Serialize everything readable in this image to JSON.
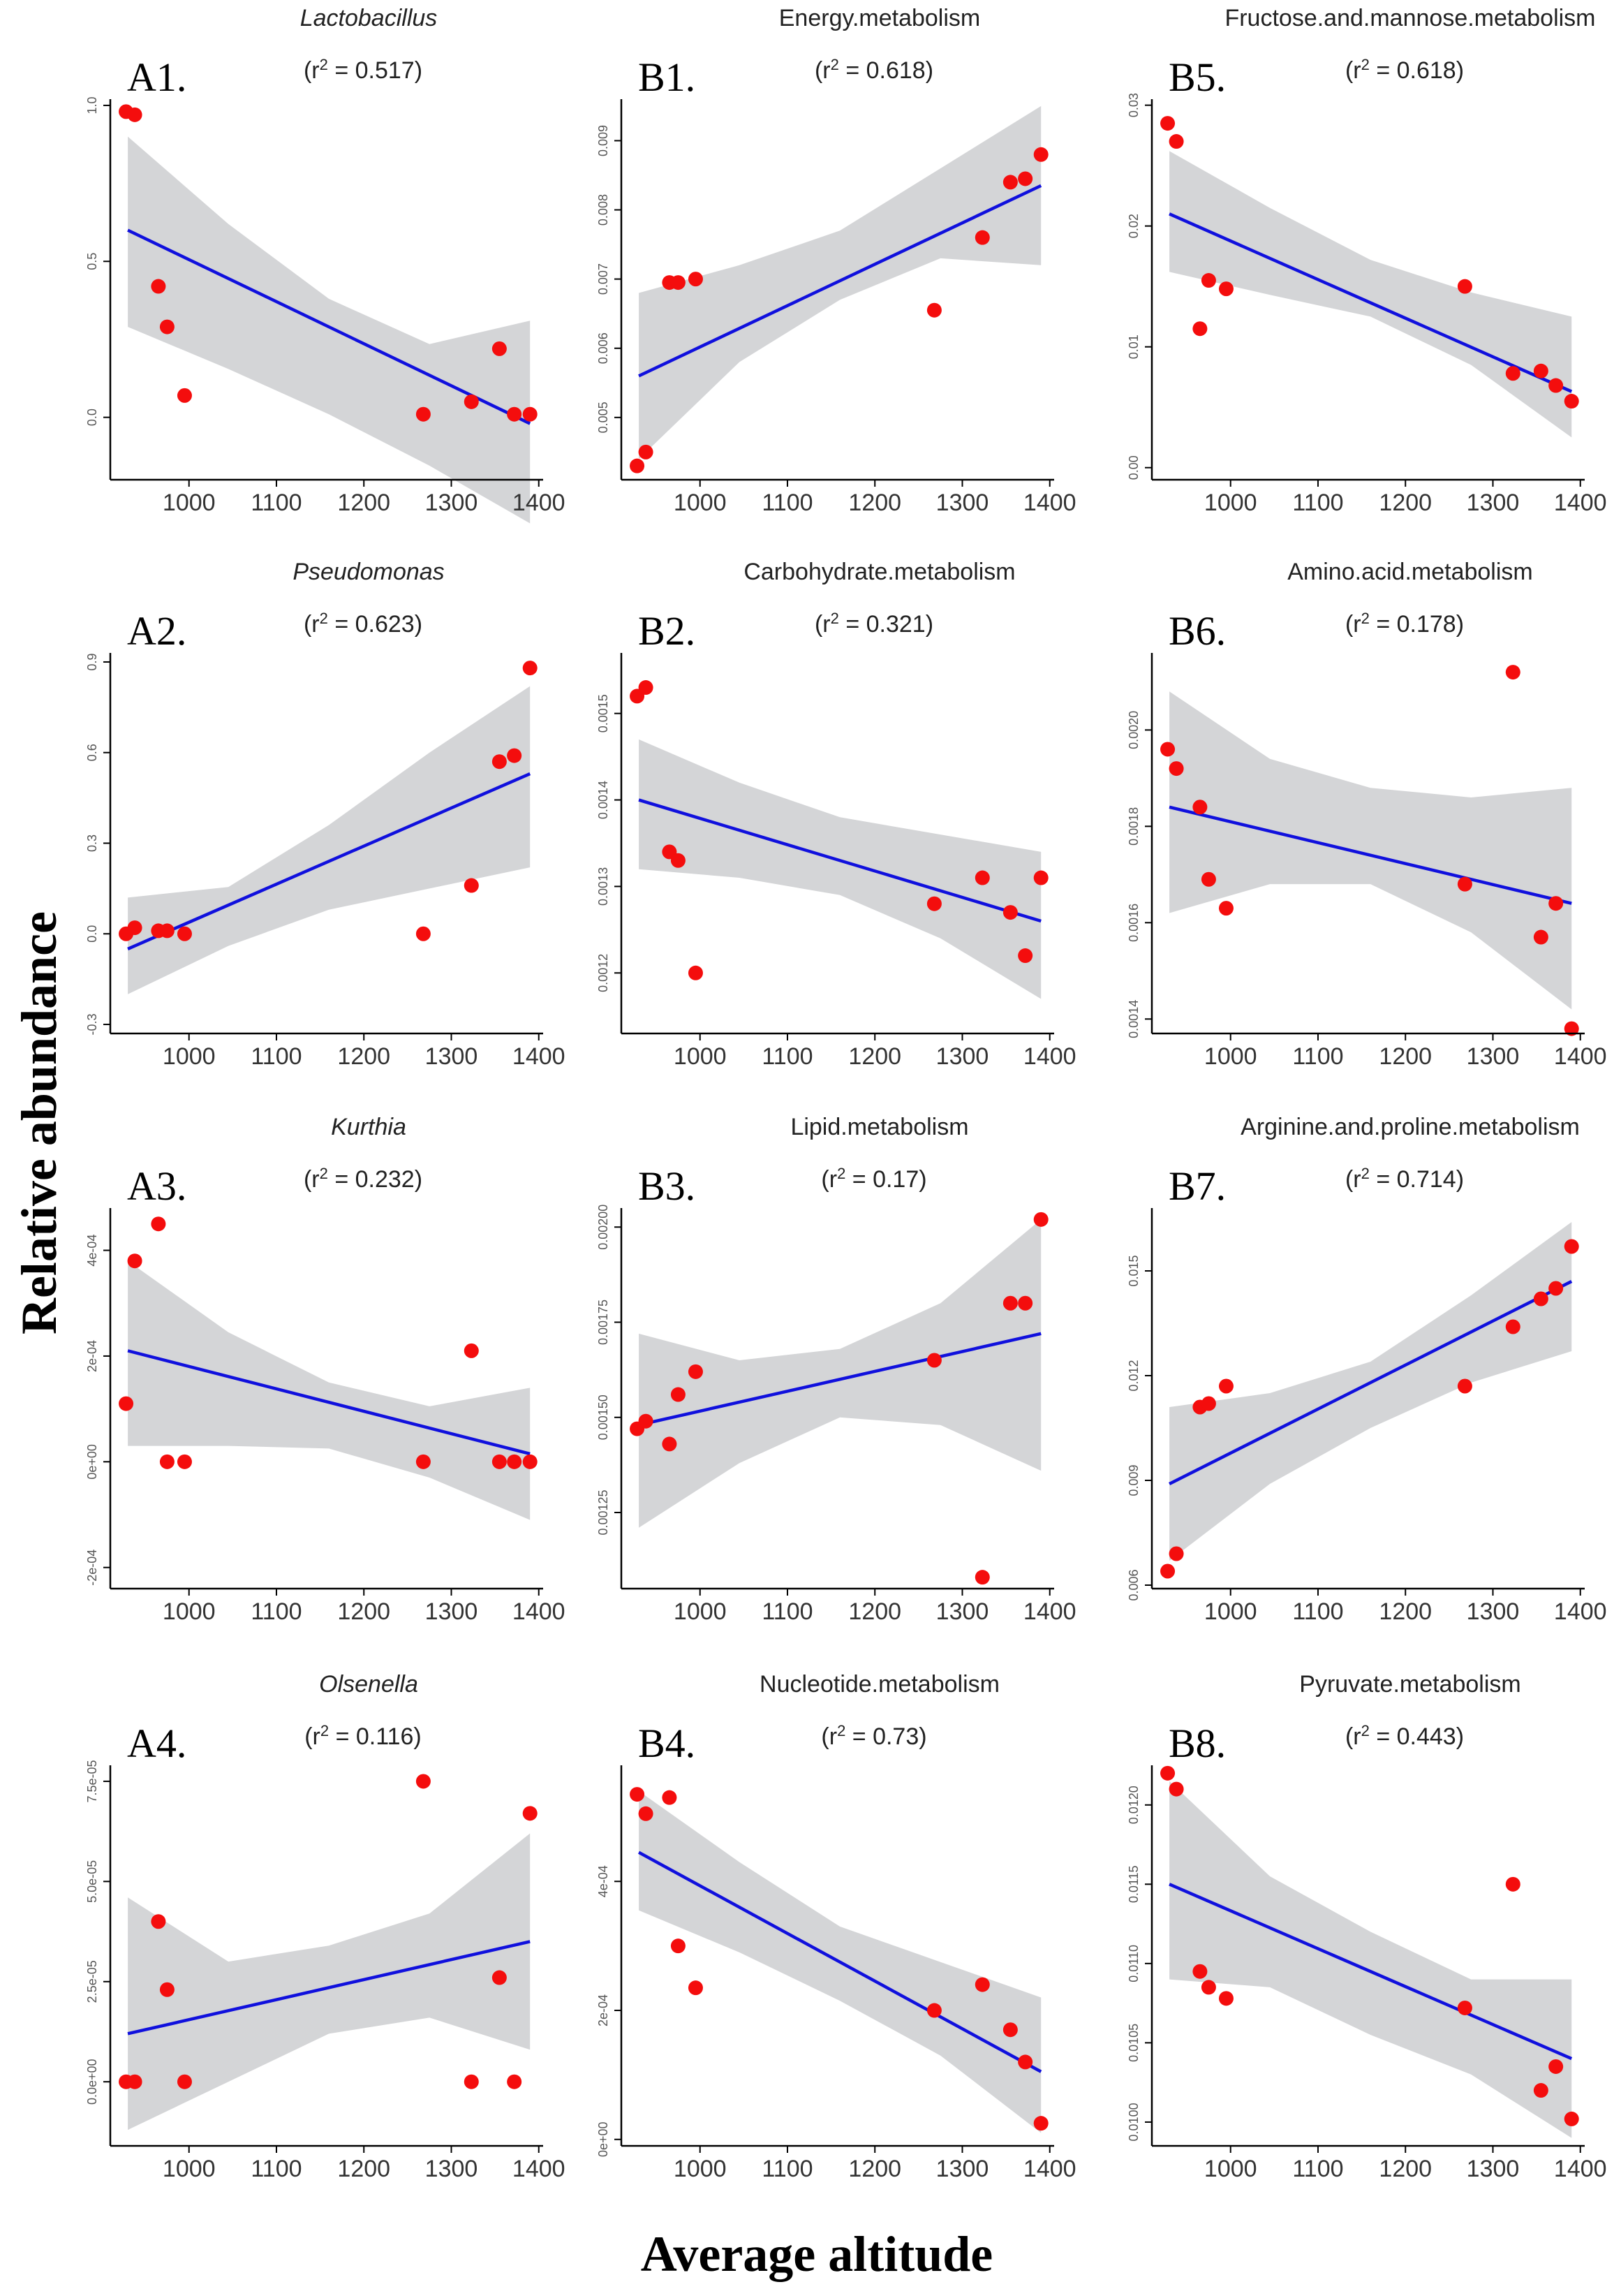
{
  "figure": {
    "ylabel": "Relative abundance",
    "xlabel": "Average altitude"
  },
  "chart_data": [
    {
      "id": "A1",
      "label": "A1.",
      "title": "Lactobacillus",
      "title_italic": true,
      "r2": "0.517",
      "type": "scatter",
      "xlim": [
        910,
        1405
      ],
      "xticks": [
        1000,
        1100,
        1200,
        1300,
        1400
      ],
      "xtick_labels": [
        "1000",
        "1100",
        "1200",
        "1300",
        "1400"
      ],
      "ylim": [
        -0.2,
        1.02
      ],
      "yticks": [
        0.0,
        0.5,
        1.0
      ],
      "ytick_labels": [
        "0.0",
        "0.5",
        "1.0"
      ],
      "x": [
        928,
        938,
        965,
        975,
        995,
        1268,
        1323,
        1355,
        1372,
        1390
      ],
      "y": [
        0.98,
        0.97,
        0.42,
        0.29,
        0.07,
        0.01,
        0.05,
        0.22,
        0.01,
        0.01
      ],
      "fit": {
        "x0": 930,
        "y0": 0.6,
        "x1": 1390,
        "y1": -0.02
      },
      "ci_lower": [
        0.29,
        0.155,
        0.01,
        -0.155,
        -0.34
      ],
      "ci_upper": [
        0.9,
        0.62,
        0.38,
        0.235,
        0.31
      ]
    },
    {
      "id": "A2",
      "label": "A2.",
      "title": "Pseudomonas",
      "title_italic": true,
      "r2": "0.623",
      "type": "scatter",
      "xlim": [
        910,
        1405
      ],
      "xticks": [
        1000,
        1100,
        1200,
        1300,
        1400
      ],
      "xtick_labels": [
        "1000",
        "1100",
        "1200",
        "1300",
        "1400"
      ],
      "ylim": [
        -0.33,
        0.93
      ],
      "yticks": [
        -0.3,
        0.0,
        0.3,
        0.6,
        0.9
      ],
      "ytick_labels": [
        "-0.3",
        "0.0",
        "0.3",
        "0.6",
        "0.9"
      ],
      "x": [
        928,
        938,
        965,
        975,
        995,
        1268,
        1323,
        1355,
        1372,
        1390
      ],
      "y": [
        0.0,
        0.02,
        0.01,
        0.01,
        0.0,
        0.0,
        0.16,
        0.57,
        0.59,
        0.88
      ],
      "fit": {
        "x0": 930,
        "y0": -0.05,
        "x1": 1390,
        "y1": 0.53
      },
      "ci_lower": [
        -0.2,
        -0.04,
        0.08,
        0.15,
        0.22
      ],
      "ci_upper": [
        0.12,
        0.155,
        0.36,
        0.6,
        0.82
      ]
    },
    {
      "id": "A3",
      "label": "A3.",
      "title": "Kurthia",
      "title_italic": true,
      "r2": "0.232",
      "type": "scatter",
      "xlim": [
        910,
        1405
      ],
      "xticks": [
        1000,
        1100,
        1200,
        1300,
        1400
      ],
      "xtick_labels": [
        "1000",
        "1100",
        "1200",
        "1300",
        "1400"
      ],
      "ylim": [
        -0.00024,
        0.00048
      ],
      "yticks": [
        -0.0002,
        0.0,
        0.0002,
        0.0004
      ],
      "ytick_labels": [
        "-2e-04",
        "0e+00",
        "2e-04",
        "4e-04"
      ],
      "x": [
        928,
        938,
        965,
        975,
        995,
        1268,
        1323,
        1355,
        1372,
        1390
      ],
      "y": [
        0.00011,
        0.00038,
        0.00045,
        0.0,
        0.0,
        0.0,
        0.00021,
        0.0,
        0.0,
        0.0
      ],
      "fit": {
        "x0": 930,
        "y0": 0.00021,
        "x1": 1390,
        "y1": 1.5e-05
      },
      "ci_lower": [
        3e-05,
        3e-05,
        2.5e-05,
        -3e-05,
        -0.00011
      ],
      "ci_upper": [
        0.00038,
        0.000245,
        0.00015,
        0.000105,
        0.00014
      ]
    },
    {
      "id": "A4",
      "label": "A4.",
      "title": "Olsenella",
      "title_italic": true,
      "r2": "0.116",
      "type": "scatter",
      "xlim": [
        910,
        1405
      ],
      "xticks": [
        1000,
        1100,
        1200,
        1300,
        1400
      ],
      "xtick_labels": [
        "1000",
        "1100",
        "1200",
        "1300",
        "1400"
      ],
      "ylim": [
        -1.6e-05,
        7.9e-05
      ],
      "yticks": [
        0.0,
        2.5e-05,
        5e-05,
        7.5e-05
      ],
      "ytick_labels": [
        "0.0e+00",
        "2.5e-05",
        "5.0e-05",
        "7.5e-05"
      ],
      "x": [
        928,
        938,
        965,
        975,
        995,
        1268,
        1323,
        1355,
        1372,
        1390
      ],
      "y": [
        0.0,
        0.0,
        4e-05,
        2.3e-05,
        0.0,
        7.5e-05,
        0.0,
        2.6e-05,
        0.0,
        6.7e-05
      ],
      "fit": {
        "x0": 930,
        "y0": 1.2e-05,
        "x1": 1390,
        "y1": 3.5e-05
      },
      "ci_lower": [
        -1.2e-05,
        0.0,
        1.2e-05,
        1.6e-05,
        8e-06
      ],
      "ci_upper": [
        4.6e-05,
        3e-05,
        3.4e-05,
        4.2e-05,
        6.2e-05
      ]
    },
    {
      "id": "B1",
      "label": "B1.",
      "title": "Energy.metabolism",
      "title_italic": false,
      "r2": "0.618",
      "type": "scatter",
      "xlim": [
        910,
        1405
      ],
      "xticks": [
        1000,
        1100,
        1200,
        1300,
        1400
      ],
      "xtick_labels": [
        "1000",
        "1100",
        "1200",
        "1300",
        "1400"
      ],
      "ylim": [
        0.0041,
        0.0096
      ],
      "yticks": [
        0.005,
        0.006,
        0.007,
        0.008,
        0.009
      ],
      "ytick_labels": [
        "0.005",
        "0.006",
        "0.007",
        "0.008",
        "0.009"
      ],
      "x": [
        928,
        938,
        965,
        975,
        995,
        1268,
        1323,
        1355,
        1372,
        1390
      ],
      "y": [
        0.0043,
        0.0045,
        0.00695,
        0.00695,
        0.007,
        0.00655,
        0.0076,
        0.0084,
        0.00845,
        0.0088
      ],
      "fit": {
        "x0": 930,
        "y0": 0.0056,
        "x1": 1390,
        "y1": 0.00835
      },
      "ci_lower": [
        0.0044,
        0.0058,
        0.0067,
        0.0073,
        0.0072
      ],
      "ci_upper": [
        0.0068,
        0.0072,
        0.0077,
        0.0086,
        0.0095
      ]
    },
    {
      "id": "B2",
      "label": "B2.",
      "title": "Carbohydrate.metabolism",
      "title_italic": false,
      "r2": "0.321",
      "type": "scatter",
      "xlim": [
        910,
        1405
      ],
      "xticks": [
        1000,
        1100,
        1200,
        1300,
        1400
      ],
      "xtick_labels": [
        "1000",
        "1100",
        "1200",
        "1300",
        "1400"
      ],
      "ylim": [
        0.00113,
        0.00157
      ],
      "yticks": [
        0.0012,
        0.0013,
        0.0014,
        0.0015
      ],
      "ytick_labels": [
        "0.0012",
        "0.0013",
        "0.0014",
        "0.0015"
      ],
      "x": [
        928,
        938,
        965,
        975,
        995,
        1268,
        1323,
        1355,
        1372,
        1390
      ],
      "y": [
        0.00152,
        0.00153,
        0.00134,
        0.00133,
        0.0012,
        0.00128,
        0.00131,
        0.00127,
        0.00122,
        0.00131
      ],
      "fit": {
        "x0": 930,
        "y0": 0.0014,
        "x1": 1390,
        "y1": 0.00126
      },
      "ci_lower": [
        0.00132,
        0.00131,
        0.00129,
        0.00124,
        0.00117
      ],
      "ci_upper": [
        0.00147,
        0.00142,
        0.00138,
        0.00136,
        0.00134
      ]
    },
    {
      "id": "B3",
      "label": "B3.",
      "title": "Lipid.metabolism",
      "title_italic": false,
      "r2": "0.17",
      "type": "scatter",
      "xlim": [
        910,
        1405
      ],
      "xticks": [
        1000,
        1100,
        1200,
        1300,
        1400
      ],
      "xtick_labels": [
        "1000",
        "1100",
        "1200",
        "1300",
        "1400"
      ],
      "ylim": [
        0.00105,
        0.00205
      ],
      "yticks": [
        0.00125,
        0.0015,
        0.00175,
        0.002
      ],
      "ytick_labels": [
        "0.00125",
        "0.00150",
        "0.00175",
        "0.00200"
      ],
      "x": [
        928,
        938,
        965,
        975,
        995,
        1268,
        1323,
        1355,
        1372,
        1390
      ],
      "y": [
        0.00147,
        0.00149,
        0.00143,
        0.00156,
        0.00162,
        0.00165,
        0.00108,
        0.0018,
        0.0018,
        0.00202
      ],
      "fit": {
        "x0": 930,
        "y0": 0.00148,
        "x1": 1390,
        "y1": 0.00172
      },
      "ci_lower": [
        0.00121,
        0.00138,
        0.0015,
        0.00148,
        0.00136
      ],
      "ci_upper": [
        0.00172,
        0.00165,
        0.00168,
        0.0018,
        0.00202
      ]
    },
    {
      "id": "B4",
      "label": "B4.",
      "title": "Nucleotide.metabolism",
      "title_italic": false,
      "r2": "0.73",
      "type": "scatter",
      "xlim": [
        910,
        1405
      ],
      "xticks": [
        1000,
        1100,
        1200,
        1300,
        1400
      ],
      "xtick_labels": [
        "1000",
        "1100",
        "1200",
        "1300",
        "1400"
      ],
      "ylim": [
        -1e-05,
        0.00058
      ],
      "yticks": [
        0.0,
        0.0002,
        0.0004
      ],
      "ytick_labels": [
        "0e+00",
        "2e-04",
        "4e-04"
      ],
      "x": [
        928,
        938,
        965,
        975,
        995,
        1268,
        1323,
        1355,
        1372,
        1390
      ],
      "y": [
        0.000535,
        0.000505,
        0.00053,
        0.0003,
        0.000235,
        0.0002,
        0.00024,
        0.00017,
        0.00012,
        2.5e-05
      ],
      "fit": {
        "x0": 930,
        "y0": 0.000445,
        "x1": 1390,
        "y1": 0.000105
      },
      "ci_lower": [
        0.000355,
        0.00029,
        0.000215,
        0.00013,
        1e-05
      ],
      "ci_upper": [
        0.00054,
        0.00043,
        0.00033,
        0.000275,
        0.00022
      ]
    },
    {
      "id": "B5",
      "label": "B5.",
      "title": "Fructose.and.mannose.metabolism",
      "title_italic": false,
      "r2": "0.618",
      "type": "scatter",
      "xlim": [
        910,
        1405
      ],
      "xticks": [
        1000,
        1100,
        1200,
        1300,
        1400
      ],
      "xtick_labels": [
        "1000",
        "1100",
        "1200",
        "1300",
        "1400"
      ],
      "ylim": [
        -0.001,
        0.0305
      ],
      "yticks": [
        0.0,
        0.01,
        0.02,
        0.03
      ],
      "ytick_labels": [
        "0.00",
        "0.01",
        "0.02",
        "0.03"
      ],
      "x": [
        928,
        938,
        965,
        975,
        995,
        1268,
        1323,
        1355,
        1372,
        1390
      ],
      "y": [
        0.0285,
        0.027,
        0.0115,
        0.0155,
        0.0148,
        0.015,
        0.0078,
        0.008,
        0.0068,
        0.0055
      ],
      "fit": {
        "x0": 930,
        "y0": 0.021,
        "x1": 1390,
        "y1": 0.0063
      },
      "ci_lower": [
        0.0162,
        0.0143,
        0.0125,
        0.0085,
        0.0025
      ],
      "ci_upper": [
        0.0262,
        0.0215,
        0.0172,
        0.0145,
        0.0125
      ]
    },
    {
      "id": "B6",
      "label": "B6.",
      "title": "Amino.acid.metabolism",
      "title_italic": false,
      "r2": "0.178",
      "type": "scatter",
      "xlim": [
        910,
        1405
      ],
      "xticks": [
        1000,
        1100,
        1200,
        1300,
        1400
      ],
      "xtick_labels": [
        "1000",
        "1100",
        "1200",
        "1300",
        "1400"
      ],
      "ylim": [
        0.00137,
        0.00216
      ],
      "yticks": [
        0.0014,
        0.0016,
        0.0018,
        0.002
      ],
      "ytick_labels": [
        "0.0014",
        "0.0016",
        "0.0018",
        "0.0020"
      ],
      "x": [
        928,
        938,
        965,
        975,
        995,
        1268,
        1323,
        1355,
        1372,
        1390
      ],
      "y": [
        0.00196,
        0.00192,
        0.00184,
        0.00169,
        0.00163,
        0.00168,
        0.00212,
        0.00157,
        0.00164,
        0.00138
      ],
      "fit": {
        "x0": 930,
        "y0": 0.00184,
        "x1": 1390,
        "y1": 0.00164
      },
      "ci_lower": [
        0.00162,
        0.00168,
        0.00168,
        0.00158,
        0.00142
      ],
      "ci_upper": [
        0.00208,
        0.00194,
        0.00188,
        0.00186,
        0.00188
      ]
    },
    {
      "id": "B7",
      "label": "B7.",
      "title": "Arginine.and.proline.metabolism",
      "title_italic": false,
      "r2": "0.714",
      "type": "scatter",
      "xlim": [
        910,
        1405
      ],
      "xticks": [
        1000,
        1100,
        1200,
        1300,
        1400
      ],
      "xtick_labels": [
        "1000",
        "1100",
        "1200",
        "1300",
        "1400"
      ],
      "ylim": [
        0.0059,
        0.0168
      ],
      "yticks": [
        0.006,
        0.009,
        0.012,
        0.015
      ],
      "ytick_labels": [
        "0.006",
        "0.009",
        "0.012",
        "0.015"
      ],
      "x": [
        928,
        938,
        965,
        975,
        995,
        1268,
        1323,
        1355,
        1372,
        1390
      ],
      "y": [
        0.0064,
        0.0069,
        0.0111,
        0.0112,
        0.0117,
        0.0117,
        0.0134,
        0.0142,
        0.0145,
        0.0157
      ],
      "fit": {
        "x0": 930,
        "y0": 0.0089,
        "x1": 1390,
        "y1": 0.0147
      },
      "ci_lower": [
        0.0067,
        0.0089,
        0.0105,
        0.0118,
        0.0127
      ],
      "ci_upper": [
        0.0111,
        0.0115,
        0.0124,
        0.0143,
        0.0164
      ]
    },
    {
      "id": "B8",
      "label": "B8.",
      "title": "Pyruvate.metabolism",
      "title_italic": false,
      "r2": "0.443",
      "type": "scatter",
      "xlim": [
        910,
        1405
      ],
      "xticks": [
        1000,
        1100,
        1200,
        1300,
        1400
      ],
      "xtick_labels": [
        "1000",
        "1100",
        "1200",
        "1300",
        "1400"
      ],
      "ylim": [
        0.00985,
        0.01225
      ],
      "yticks": [
        0.01,
        0.0105,
        0.011,
        0.0115,
        0.012
      ],
      "ytick_labels": [
        "0.0100",
        "0.0105",
        "0.0110",
        "0.0115",
        "0.0120"
      ],
      "x": [
        928,
        938,
        965,
        975,
        995,
        1268,
        1323,
        1355,
        1372,
        1390
      ],
      "y": [
        0.0122,
        0.0121,
        0.01095,
        0.01085,
        0.01078,
        0.01072,
        0.0115,
        0.0102,
        0.01035,
        0.01002
      ],
      "fit": {
        "x0": 930,
        "y0": 0.0115,
        "x1": 1390,
        "y1": 0.0104
      },
      "ci_lower": [
        0.0109,
        0.01085,
        0.01055,
        0.0103,
        0.0099
      ],
      "ci_upper": [
        0.01215,
        0.01155,
        0.0112,
        0.0109,
        0.0109
      ]
    }
  ]
}
